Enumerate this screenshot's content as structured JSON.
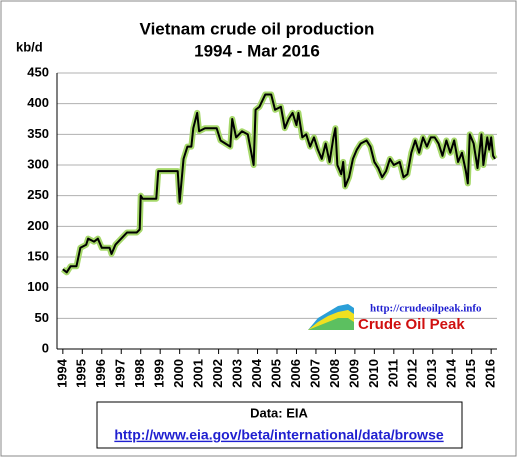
{
  "chart_data": {
    "type": "line",
    "title": "Vietnam crude oil production",
    "subtitle": "1994 - Mar 2016",
    "y_label": "kb/d",
    "source": "Data: EIA",
    "source_url": "http://www.eia.gov/beta/international/data/browse",
    "logo_url": "http://crudeoilpeak.info",
    "logo_text": "Crude Oil Peak",
    "xlim": [
      1993.7,
      2016.3
    ],
    "xticks": [
      1994,
      1995,
      1996,
      1997,
      1998,
      1999,
      2000,
      2001,
      2002,
      2003,
      2004,
      2005,
      2006,
      2007,
      2008,
      2009,
      2010,
      2011,
      2012,
      2013,
      2014,
      2015,
      2016
    ],
    "ylim": [
      0,
      450
    ],
    "yticks": [
      0,
      50,
      100,
      150,
      200,
      250,
      300,
      350,
      400,
      450
    ],
    "grid": true,
    "series": [
      {
        "name": "Vietnam",
        "color": "#000000",
        "x": [
          1994.0,
          1994.2,
          1994.4,
          1994.7,
          1994.9,
          1995.2,
          1995.3,
          1995.6,
          1995.8,
          1996.0,
          1996.4,
          1996.5,
          1996.7,
          1997.0,
          1997.3,
          1997.8,
          1997.95,
          1998.0,
          1998.1,
          1998.8,
          1998.9,
          1999.9,
          2000.0,
          2000.2,
          2000.4,
          2000.6,
          2000.7,
          2000.9,
          2001.0,
          2001.3,
          2001.9,
          2002.1,
          2002.6,
          2002.7,
          2002.9,
          2003.2,
          2003.5,
          2003.8,
          2003.9,
          2004.1,
          2004.4,
          2004.7,
          2004.9,
          2005.2,
          2005.4,
          2005.6,
          2005.8,
          2006.0,
          2006.1,
          2006.3,
          2006.5,
          2006.7,
          2006.9,
          2007.1,
          2007.3,
          2007.5,
          2007.7,
          2007.9,
          2008.0,
          2008.1,
          2008.3,
          2008.4,
          2008.5,
          2008.7,
          2008.9,
          2009.1,
          2009.3,
          2009.6,
          2009.8,
          2010.0,
          2010.2,
          2010.4,
          2010.6,
          2010.8,
          2011.0,
          2011.3,
          2011.5,
          2011.7,
          2011.9,
          2012.1,
          2012.3,
          2012.5,
          2012.7,
          2012.9,
          2013.1,
          2013.3,
          2013.5,
          2013.7,
          2013.9,
          2014.1,
          2014.3,
          2014.5,
          2014.7,
          2014.8,
          2014.9,
          2015.1,
          2015.3,
          2015.5,
          2015.6,
          2015.8,
          2015.9,
          2016.0,
          2016.1,
          2016.2
        ],
        "values": [
          130,
          125,
          135,
          135,
          165,
          170,
          180,
          175,
          180,
          165,
          165,
          155,
          170,
          180,
          190,
          190,
          195,
          250,
          245,
          245,
          290,
          290,
          240,
          310,
          330,
          330,
          360,
          385,
          355,
          360,
          360,
          340,
          330,
          375,
          345,
          355,
          350,
          300,
          390,
          395,
          415,
          415,
          390,
          395,
          360,
          375,
          385,
          365,
          385,
          345,
          350,
          330,
          345,
          325,
          310,
          335,
          305,
          345,
          360,
          300,
          285,
          305,
          265,
          280,
          310,
          325,
          335,
          340,
          330,
          305,
          295,
          280,
          290,
          310,
          300,
          305,
          280,
          285,
          320,
          340,
          320,
          345,
          330,
          345,
          345,
          335,
          315,
          340,
          320,
          340,
          305,
          320,
          290,
          270,
          350,
          335,
          295,
          350,
          300,
          345,
          325,
          345,
          315,
          310
        ]
      }
    ]
  }
}
